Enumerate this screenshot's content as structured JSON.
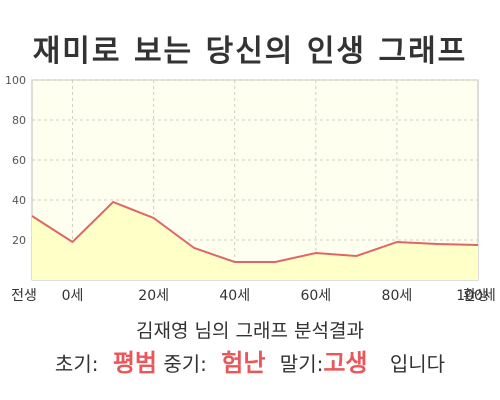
{
  "title": "재미로 보는 당신의 인생 그래프",
  "chart_data": {
    "type": "area",
    "x": [
      0,
      1,
      2,
      3,
      4,
      5,
      6,
      7,
      8,
      9,
      10,
      11
    ],
    "y": [
      32,
      19,
      39,
      31,
      16,
      9,
      9,
      13.5,
      12,
      19,
      18,
      17.5
    ],
    "ylim": [
      0,
      100
    ],
    "yticks": [
      20,
      40,
      60,
      80,
      100
    ],
    "xtick_positions": [
      -0.3,
      1,
      3,
      5,
      7,
      9,
      11,
      12.4
    ],
    "xtick_labels": [
      "전생",
      "0세",
      "20세",
      "40세",
      "60세",
      "80세",
      "100세",
      "환생"
    ],
    "grid": true,
    "line_color": "#e06666",
    "fill_color": "#ffffc8",
    "plot_bg": "#fffff0"
  },
  "summary": {
    "title": "김재영 님의 그래프 분석결과",
    "early_label": "초기:",
    "early_value": "평범",
    "mid_label": "중기:",
    "mid_value": "험난",
    "late_label": "말기:",
    "late_value": "고생",
    "suffix": "입니다"
  },
  "colors": {
    "highlight": "#e8575a"
  }
}
